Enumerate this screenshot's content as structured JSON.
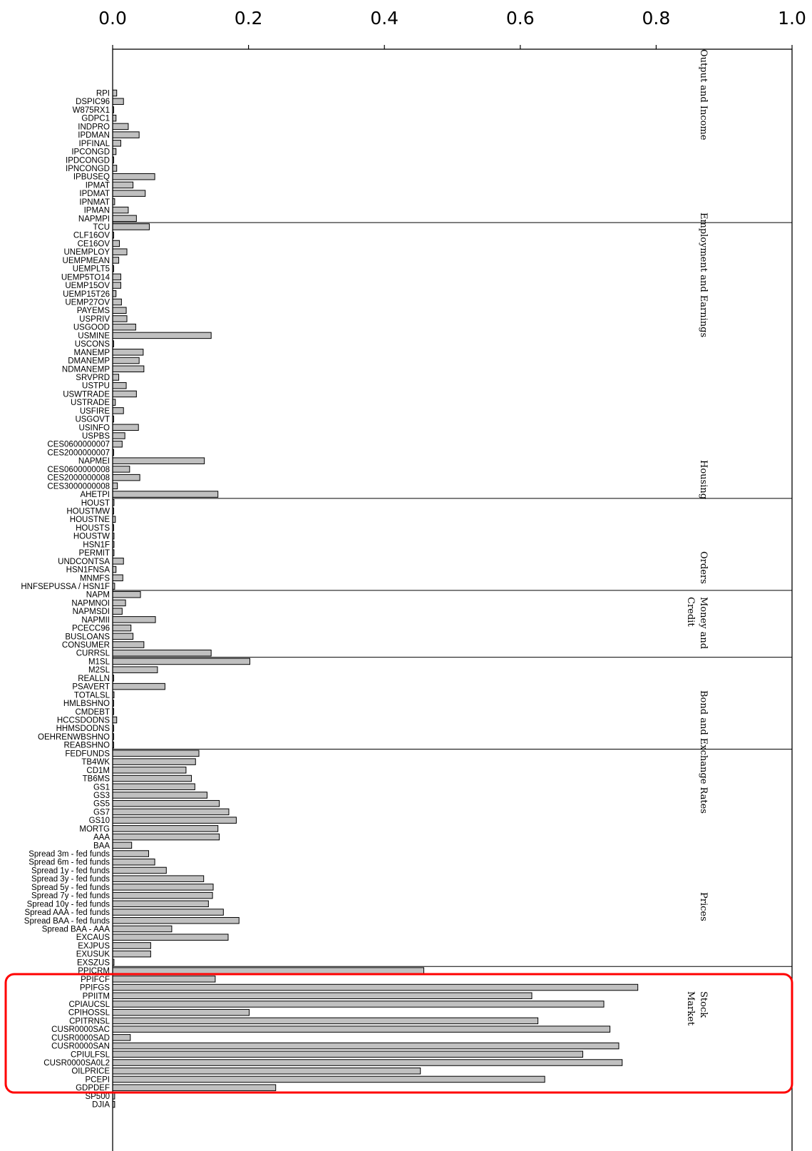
{
  "chart_data": {
    "type": "bar",
    "orientation": "horizontal",
    "xlim": [
      0,
      1
    ],
    "x_ticks": [
      "0.0",
      "0.2",
      "0.4",
      "0.6",
      "0.8",
      "1.0"
    ],
    "x_ticks_position": "top",
    "grid": false,
    "categories": [
      "RPI",
      "DSPIC96",
      "W875RX1",
      "GDPC1",
      "INDPRO",
      "IPDMAN",
      "IPFINAL",
      "IPCONGD",
      "IPDCONGD",
      "IPNCONGD",
      "IPBUSEQ",
      "IPMAT",
      "IPDMAT",
      "IPNMAT",
      "IPMAN",
      "NAPMPI",
      "TCU",
      "CLF16OV",
      "CE16OV",
      "UNEMPLOY",
      "UEMPMEAN",
      "UEMPLT5",
      "UEMP5TO14",
      "UEMP15OV",
      "UEMP15T26",
      "UEMP27OV",
      "PAYEMS",
      "USPRIV",
      "USGOOD",
      "USMINE",
      "USCONS",
      "MANEMP",
      "DMANEMP",
      "NDMANEMP",
      "SRVPRD",
      "USTPU",
      "USWTRADE",
      "USTRADE",
      "USFIRE",
      "USGOVT",
      "USINFO",
      "USPBS",
      "CES0600000007",
      "CES2000000007",
      "NAPMEI",
      "CES0600000008",
      "CES2000000008",
      "CES3000000008",
      "AHETPI",
      "HOUST",
      "HOUSTMW",
      "HOUSTNE",
      "HOUSTS",
      "HOUSTW",
      "HSN1F",
      "PERMIT",
      "UNDCONTSA",
      "HSN1FNSA",
      "MNMFS",
      "HNFSEPUSSA / HSN1F",
      "NAPM",
      "NAPMNOI",
      "NAPMSDI",
      "NAPMII",
      "PCECC96",
      "BUSLOANS",
      "CONSUMER",
      "CURRSL",
      "M1SL",
      "M2SL",
      "REALLN",
      "PSAVERT",
      "TOTALSL",
      "HMLBSHNO",
      "CMDEBT",
      "HCCSDODNS",
      "HHMSDODNS",
      "OEHRENWBSHNO",
      "REABSHNO",
      "FEDFUNDS",
      "TB4WK",
      "CD1M",
      "TB6MS",
      "GS1",
      "GS3",
      "GS5",
      "GS7",
      "GS10",
      "MORTG",
      "AAA",
      "BAA",
      "Spread 3m - fed funds",
      "Spread 6m - fed funds",
      "Spread 1y - fed funds",
      "Spread 3y - fed funds",
      "Spread 5y - fed funds",
      "Spread 7y - fed funds",
      "Spread 10y - fed funds",
      "Spread AAA - fed funds",
      "Spread BAA - fed funds",
      "Spread BAA - AAA",
      "EXCAUS",
      "EXJPUS",
      "EXUSUK",
      "EXSZUS",
      "PPICRM",
      "PPIFCF",
      "PPIFGS",
      "PPIITM",
      "CPIAUCSL",
      "CPIHOSSL",
      "CPITRNSL",
      "CUSR0000SAC",
      "CUSR0000SAD",
      "CUSR0000SAN",
      "CPIULFSL",
      "CUSR0000SA0L2",
      "OILPRICE",
      "PCEPI",
      "GDPDEF",
      "SP500",
      "DJIA"
    ],
    "values": [
      0.006,
      0.016,
      0.001,
      0.005,
      0.023,
      0.039,
      0.012,
      0.005,
      0.001,
      0.006,
      0.062,
      0.03,
      0.048,
      0.003,
      0.023,
      0.035,
      0.054,
      0.001,
      0.01,
      0.021,
      0.009,
      0.001,
      0.012,
      0.012,
      0.005,
      0.013,
      0.02,
      0.021,
      0.034,
      0.145,
      0.001,
      0.045,
      0.039,
      0.046,
      0.009,
      0.02,
      0.035,
      0.004,
      0.016,
      0.001,
      0.038,
      0.018,
      0.014,
      0.001,
      0.135,
      0.025,
      0.04,
      0.007,
      0.155,
      0.002,
      0.001,
      0.004,
      0.001,
      0.002,
      0.002,
      0.002,
      0.016,
      0.005,
      0.015,
      0.003,
      0.041,
      0.019,
      0.014,
      0.063,
      0.027,
      0.03,
      0.046,
      0.145,
      0.202,
      0.066,
      0.001,
      0.077,
      0.002,
      0.001,
      0.001,
      0.006,
      0.001,
      0.001,
      0.001,
      0.127,
      0.122,
      0.108,
      0.116,
      0.121,
      0.139,
      0.157,
      0.171,
      0.182,
      0.155,
      0.157,
      0.028,
      0.053,
      0.062,
      0.079,
      0.134,
      0.148,
      0.147,
      0.141,
      0.163,
      0.186,
      0.087,
      0.17,
      0.056,
      0.056,
      0.002,
      0.458,
      0.151,
      0.773,
      0.617,
      0.723,
      0.201,
      0.626,
      0.732,
      0.026,
      0.745,
      0.692,
      0.75,
      0.453,
      0.636,
      0.24,
      0.003,
      0.003
    ],
    "groups": [
      {
        "name": "Output and Income",
        "start": 0,
        "end": 15
      },
      {
        "name": "Employment and Earnings",
        "start": 16,
        "end": 48
      },
      {
        "name": "Housing",
        "start": 49,
        "end": 58
      },
      {
        "name": "Orders",
        "start": 59,
        "end": 67
      },
      {
        "name": "Money and Credit",
        "start": 68,
        "end": 78
      },
      {
        "name": "Bond and Exchange Rates",
        "start": 79,
        "end": 104
      },
      {
        "name": "Prices",
        "start": 105,
        "end": 120
      },
      {
        "name": "Stock Market",
        "start": 121,
        "end": 122
      }
    ],
    "separator_after_index": [
      15,
      48,
      59,
      67,
      78,
      104
    ],
    "group_label_lines": {
      "Output and Income": [
        "Output and Income"
      ],
      "Employment and Earnings": [
        "Employment and Earnings"
      ],
      "Housing": [
        "Housing"
      ],
      "Orders": [
        "Orders"
      ],
      "Money and Credit": [
        "Money and",
        "Credit"
      ],
      "Bond and Exchange Rates": [
        "Bond and Exchange Rates"
      ],
      "Prices": [
        "Prices"
      ],
      "Stock Market": [
        "Stock",
        "Market"
      ]
    },
    "highlight": {
      "from": "PPIFCF",
      "to": "GDPDEF",
      "color": "#ff0000"
    }
  }
}
